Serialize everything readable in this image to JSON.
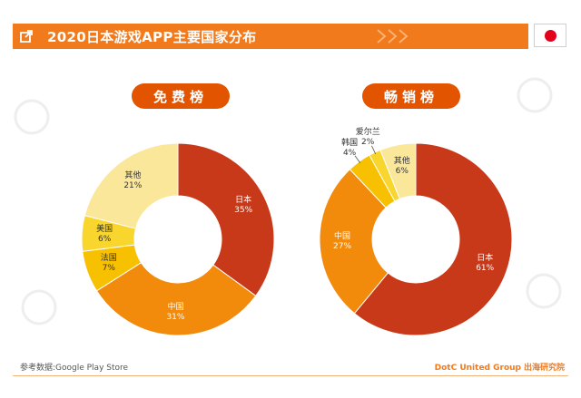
{
  "header": {
    "title": "2020日本游戏APP主要国家分布",
    "accent_color": "#f17a1d",
    "icon": "share-icon",
    "flag": "japan-flag-icon"
  },
  "charts_titles": {
    "free": "免费榜",
    "grossing": "畅销榜"
  },
  "chart_data": [
    {
      "type": "pie",
      "title": "免费榜",
      "categories": [
        "日本",
        "中国",
        "法国",
        "美国",
        "其他"
      ],
      "values": [
        35,
        31,
        7,
        6,
        21
      ],
      "colors": [
        "#c8391a",
        "#f28a0c",
        "#f7c000",
        "#f9d62e",
        "#fbe79a"
      ]
    },
    {
      "type": "pie",
      "title": "畅销榜",
      "categories": [
        "日本",
        "中国",
        "韩国",
        "爱尔兰",
        "其他"
      ],
      "values": [
        61,
        27,
        4,
        2,
        6
      ],
      "colors": [
        "#c8391a",
        "#f28a0c",
        "#f7c000",
        "#f9d62e",
        "#fbe79a"
      ]
    }
  ],
  "footer": {
    "source": "参考数据:Google Play Store",
    "brand": "DotC United Group",
    "brand_suffix": "出海研究院"
  },
  "watermark": "DOTC UNITED"
}
